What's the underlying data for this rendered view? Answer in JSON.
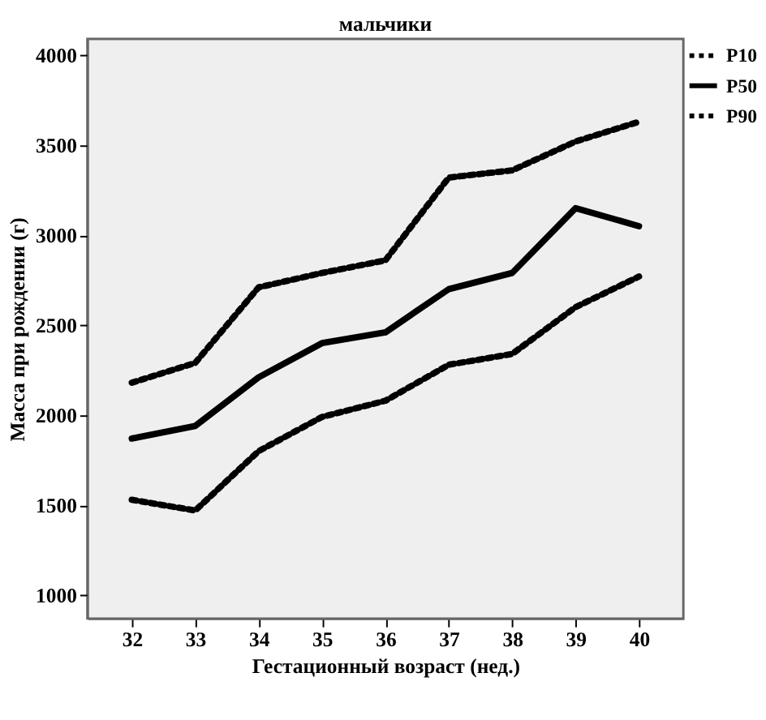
{
  "chart_data": {
    "type": "line",
    "title": "мальчики",
    "xlabel": "Гестационный возраст (нед.)",
    "ylabel": "Масса при рождении (г)",
    "categories": [
      "32",
      "33",
      "34",
      "35",
      "36",
      "37",
      "38",
      "39",
      "40"
    ],
    "series": [
      {
        "name": "P10",
        "color": "#000000",
        "line_style": "dotted",
        "values": [
          1530,
          1470,
          1800,
          1990,
          2080,
          2280,
          2340,
          2600,
          2770
        ]
      },
      {
        "name": "P50",
        "color": "#000000",
        "line_style": "solid",
        "values": [
          1870,
          1940,
          2210,
          2400,
          2460,
          2700,
          2790,
          3150,
          3050
        ]
      },
      {
        "name": "P90",
        "color": "#000000",
        "line_style": "dotted",
        "values": [
          2180,
          2290,
          2710,
          2790,
          2860,
          3320,
          3360,
          3520,
          3630
        ]
      }
    ],
    "ylim": [
      870,
      4090
    ],
    "yticks": [
      1000,
      1500,
      2000,
      2500,
      3000,
      3500,
      4000
    ],
    "grid": false,
    "legend": "top right",
    "marker": "none"
  }
}
